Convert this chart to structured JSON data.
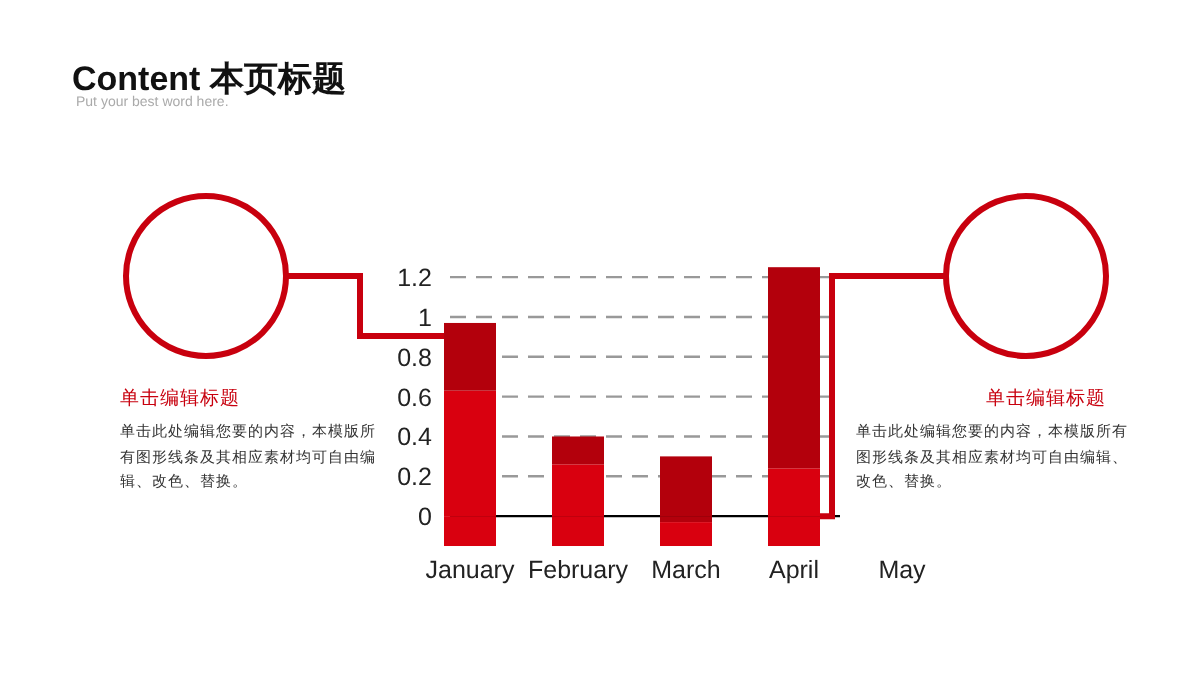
{
  "chart_data": {
    "type": "bar",
    "stacked": true,
    "title": "Content 本页标题",
    "subtitle": "Put your best word here.",
    "categories": [
      "January",
      "February",
      "March",
      "April",
      "May"
    ],
    "series": [
      {
        "color": "#d9000f",
        "values": [
          0.63,
          0.26,
          null,
          0.24,
          null
        ]
      },
      {
        "color": "#b3000c",
        "values": [
          0.34,
          0.14,
          0.3,
          1.01,
          null
        ]
      },
      {
        "color": "#b3000c",
        "values": [
          null,
          null,
          -0.03,
          null,
          null
        ]
      },
      {
        "color": "#d9000f",
        "values": [
          -0.15,
          -0.15,
          -0.12,
          -0.15,
          null
        ]
      }
    ],
    "ylim": [
      -0.16,
      1.25
    ],
    "yticks": [
      0,
      0.2,
      0.4,
      0.6,
      0.8,
      1,
      1.2
    ],
    "grid": "y",
    "annotations": [
      "单击编辑标题",
      "单击此处编辑您要的内容，本模版所有图形线条及其相应素材均可自由编辑、改色、替换。",
      "单击编辑标题",
      "单击此处编辑您要的内容，本模版所有图形线条及其相应素材均可自由编辑、改色、替换。"
    ]
  }
}
